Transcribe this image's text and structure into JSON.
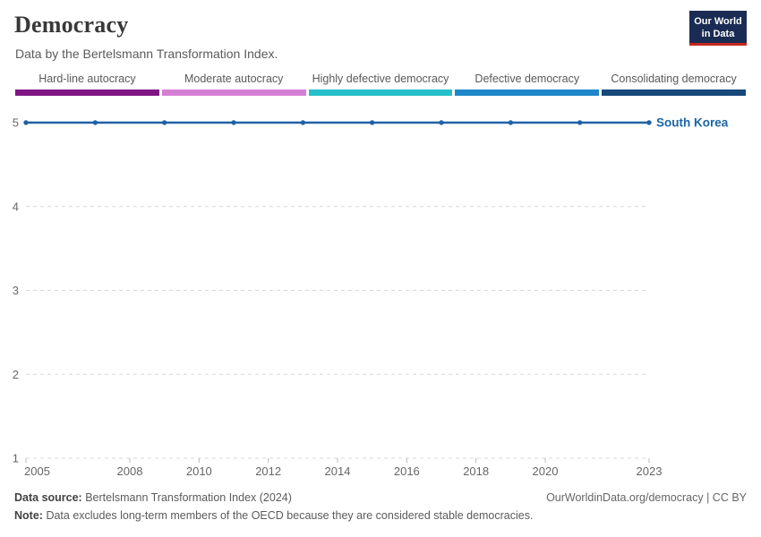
{
  "header": {
    "title": "Democracy",
    "subtitle": "Data by the Bertelsmann Transformation Index.",
    "logo": {
      "line1": "Our World",
      "line2": "in Data",
      "bg_color": "#1a2c53",
      "accent_color": "#c5271d"
    }
  },
  "legend": {
    "items": [
      {
        "label": "Hard-line autocracy",
        "color": "#7f1684"
      },
      {
        "label": "Moderate autocracy",
        "color": "#d57fd4"
      },
      {
        "label": "Highly defective democracy",
        "color": "#27bfc9"
      },
      {
        "label": "Defective democracy",
        "color": "#1d87c9"
      },
      {
        "label": "Consolidating democracy",
        "color": "#17477b"
      }
    ]
  },
  "chart_data": {
    "type": "line",
    "title": "Democracy",
    "subtitle": "Data by the Bertelsmann Transformation Index.",
    "xlabel": "",
    "ylabel": "",
    "xlim": [
      2005,
      2023
    ],
    "ylim": [
      1,
      5
    ],
    "grid": "horizontal-dashed",
    "x_ticks": [
      2005,
      2008,
      2010,
      2012,
      2014,
      2016,
      2018,
      2020,
      2023
    ],
    "y_ticks": [
      5,
      4,
      3,
      2,
      1
    ],
    "series": [
      {
        "name": "South Korea",
        "color": "#2062a6",
        "label_color": "#1a66a6",
        "x": [
          2005,
          2007,
          2009,
          2011,
          2013,
          2015,
          2017,
          2019,
          2021,
          2023
        ],
        "values": [
          5,
          5,
          5,
          5,
          5,
          5,
          5,
          5,
          5,
          5
        ]
      }
    ],
    "styles": {
      "grid_color": "#d8d8d8",
      "tick_color": "#bbbbbb",
      "axis_label_color": "#666666"
    }
  },
  "footer": {
    "source_label": "Data source:",
    "source_text": "Bertelsmann Transformation Index (2024)",
    "note_label": "Note:",
    "note_text": "Data excludes long-term members of the OECD because they are considered stable democracies.",
    "attribution": "OurWorldinData.org/democracy | CC BY"
  }
}
